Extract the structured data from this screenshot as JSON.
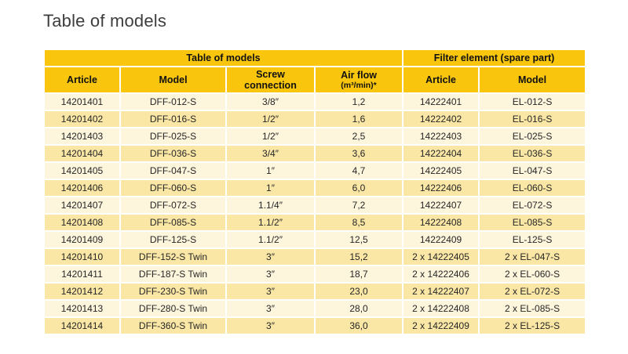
{
  "page": {
    "title": "Table of models"
  },
  "colors": {
    "header_yellow": "#F9C60D",
    "row_cream": "#FDF5DC",
    "row_yellow": "#FAE7A6"
  },
  "table": {
    "group_headers": [
      {
        "label": "Table of models",
        "colspan": 4
      },
      {
        "label": "Filter element (spare part)",
        "colspan": 2
      }
    ],
    "columns": [
      {
        "label": "Article"
      },
      {
        "label": "Model"
      },
      {
        "line1": "Screw",
        "line2": "connection"
      },
      {
        "line1": "Air flow",
        "line2": "(m³/min)*"
      },
      {
        "label": "Article"
      },
      {
        "label": "Model"
      }
    ],
    "rows": [
      [
        "14201401",
        "DFF-012-S",
        "3/8″",
        "1,2",
        "14222401",
        "EL-012-S"
      ],
      [
        "14201402",
        "DFF-016-S",
        "1/2″",
        "1,6",
        "14222402",
        "EL-016-S"
      ],
      [
        "14201403",
        "DFF-025-S",
        "1/2″",
        "2,5",
        "14222403",
        "EL-025-S"
      ],
      [
        "14201404",
        "DFF-036-S",
        "3/4″",
        "3,6",
        "14222404",
        "EL-036-S"
      ],
      [
        "14201405",
        "DFF-047-S",
        "1″",
        "4,7",
        "14222405",
        "EL-047-S"
      ],
      [
        "14201406",
        "DFF-060-S",
        "1″",
        "6,0",
        "14222406",
        "EL-060-S"
      ],
      [
        "14201407",
        "DFF-072-S",
        "1.1/4″",
        "7,2",
        "14222407",
        "EL-072-S"
      ],
      [
        "14201408",
        "DFF-085-S",
        "1.1/2″",
        "8,5",
        "14222408",
        "EL-085-S"
      ],
      [
        "14201409",
        "DFF-125-S",
        "1.1/2″",
        "12,5",
        "14222409",
        "EL-125-S"
      ],
      [
        "14201410",
        "DFF-152-S Twin",
        "3″",
        "15,2",
        "2 x 14222405",
        "2 x EL-047-S"
      ],
      [
        "14201411",
        "DFF-187-S Twin",
        "3″",
        "18,7",
        "2 x 14222406",
        "2 x EL-060-S"
      ],
      [
        "14201412",
        "DFF-230-S Twin",
        "3″",
        "23,0",
        "2 x 14222407",
        "2 x EL-072-S"
      ],
      [
        "14201413",
        "DFF-280-S Twin",
        "3″",
        "28,0",
        "2 x 14222408",
        "2 x EL-085-S"
      ],
      [
        "14201414",
        "DFF-360-S Twin",
        "3″",
        "36,0",
        "2 x 14222409",
        "2 x EL-125-S"
      ]
    ]
  }
}
